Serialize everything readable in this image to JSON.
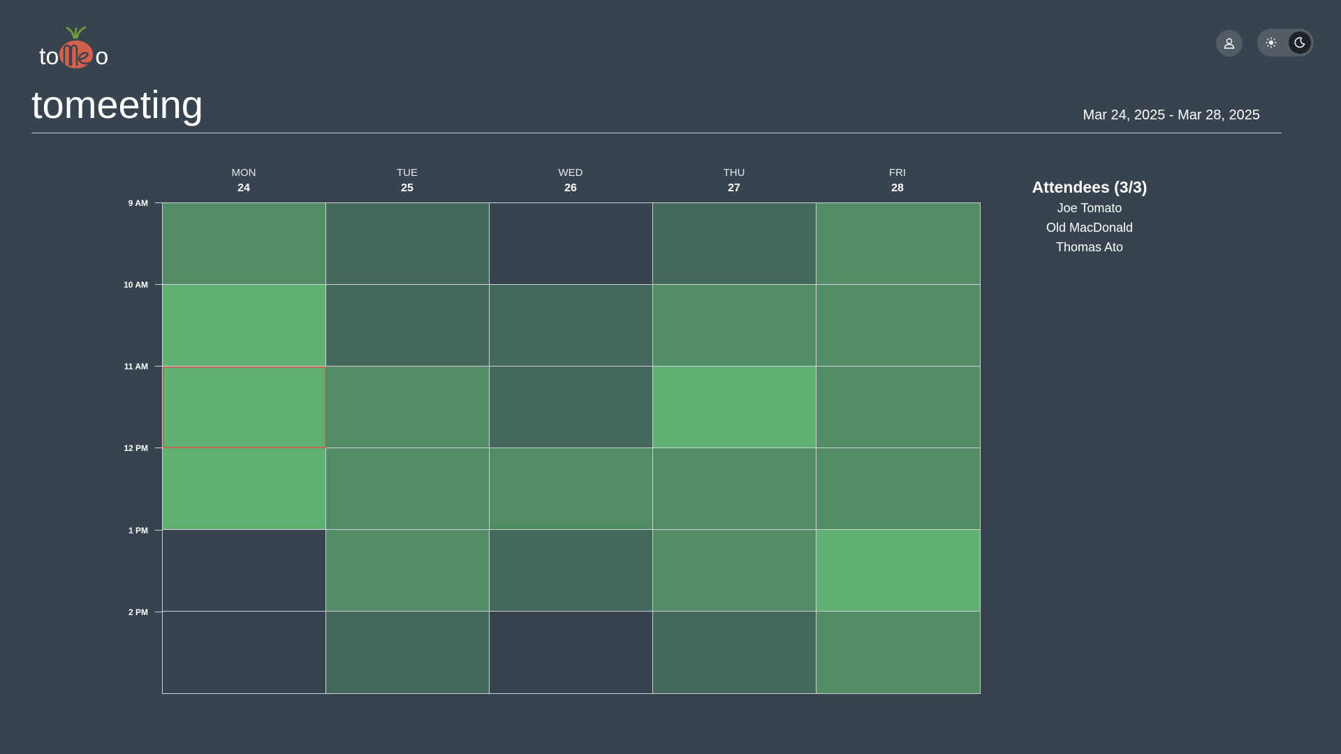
{
  "logo": {
    "left": "to",
    "right": "o",
    "middle": "mee"
  },
  "header": {
    "profile_icon": "user-icon",
    "theme": {
      "light_icon": "sun-icon",
      "dark_icon": "moon-icon",
      "active": "dark"
    }
  },
  "page": {
    "title": "tomeeting",
    "date_range": "Mar 24, 2025 - Mar 28, 2025"
  },
  "calendar": {
    "days": [
      {
        "name": "MON",
        "date": "24"
      },
      {
        "name": "TUE",
        "date": "25"
      },
      {
        "name": "WED",
        "date": "26"
      },
      {
        "name": "THU",
        "date": "27"
      },
      {
        "name": "FRI",
        "date": "28"
      }
    ],
    "times": [
      "9 AM",
      "10 AM",
      "11 AM",
      "12 PM",
      "1 PM",
      "2 PM"
    ],
    "colors": {
      "none": "#37444f",
      "one": "#44685b",
      "two": "#528c67",
      "three": "#5fb071",
      "selected_border": "#c2654f"
    },
    "availability": [
      [
        2,
        1,
        0,
        1,
        2
      ],
      [
        3,
        1,
        1,
        2,
        2
      ],
      [
        3,
        2,
        1,
        3,
        2
      ],
      [
        3,
        2,
        2,
        2,
        2
      ],
      [
        0,
        2,
        1,
        2,
        3
      ],
      [
        0,
        1,
        0,
        1,
        2
      ]
    ],
    "selected": {
      "row": 2,
      "col": 0
    }
  },
  "attendees": {
    "title": "Attendees (3/3)",
    "list": [
      "Joe Tomato",
      "Old MacDonald",
      "Thomas Ato"
    ]
  }
}
